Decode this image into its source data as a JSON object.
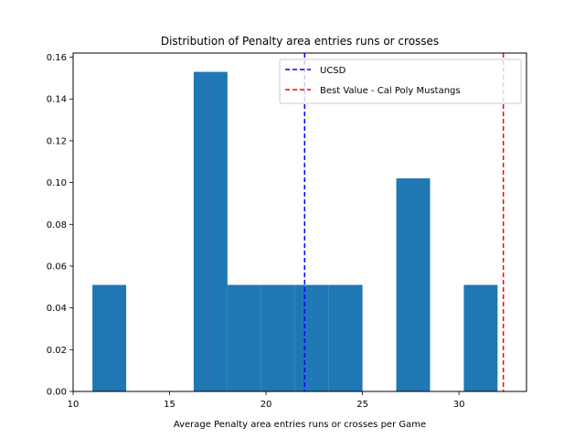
{
  "chart_data": {
    "type": "bar",
    "title": "Distribution of Penalty area entries runs or crosses",
    "xlabel": "Average Penalty area entries runs or crosses per Game",
    "ylabel": "",
    "xlim": [
      10,
      33.5
    ],
    "ylim": [
      0,
      0.162
    ],
    "xticks": [
      10,
      15,
      20,
      25,
      30
    ],
    "yticks": [
      0.0,
      0.02,
      0.04,
      0.06,
      0.08,
      0.1,
      0.12,
      0.14,
      0.16
    ],
    "ytick_labels": [
      "0.00",
      "0.02",
      "0.04",
      "0.06",
      "0.08",
      "0.10",
      "0.12",
      "0.14",
      "0.16"
    ],
    "bin_edges": [
      11.0,
      12.75,
      14.5,
      16.25,
      18.0,
      19.75,
      21.5,
      23.25,
      25.0,
      26.75,
      28.5,
      30.25,
      32.0
    ],
    "values": [
      0.051,
      0,
      0,
      0.153,
      0.051,
      0.051,
      0.051,
      0.051,
      0,
      0.102,
      0,
      0.051
    ],
    "bar_color": "#1f77b4",
    "grid": false,
    "legend_position": "top-right",
    "reference_lines": [
      {
        "name": "UCSD",
        "x": 22.0,
        "color": "#0000ff",
        "style": "dashed"
      },
      {
        "name": "Best Value - Cal Poly Mustangs",
        "x": 32.3,
        "color": "#ff0000",
        "style": "dashed"
      }
    ]
  }
}
